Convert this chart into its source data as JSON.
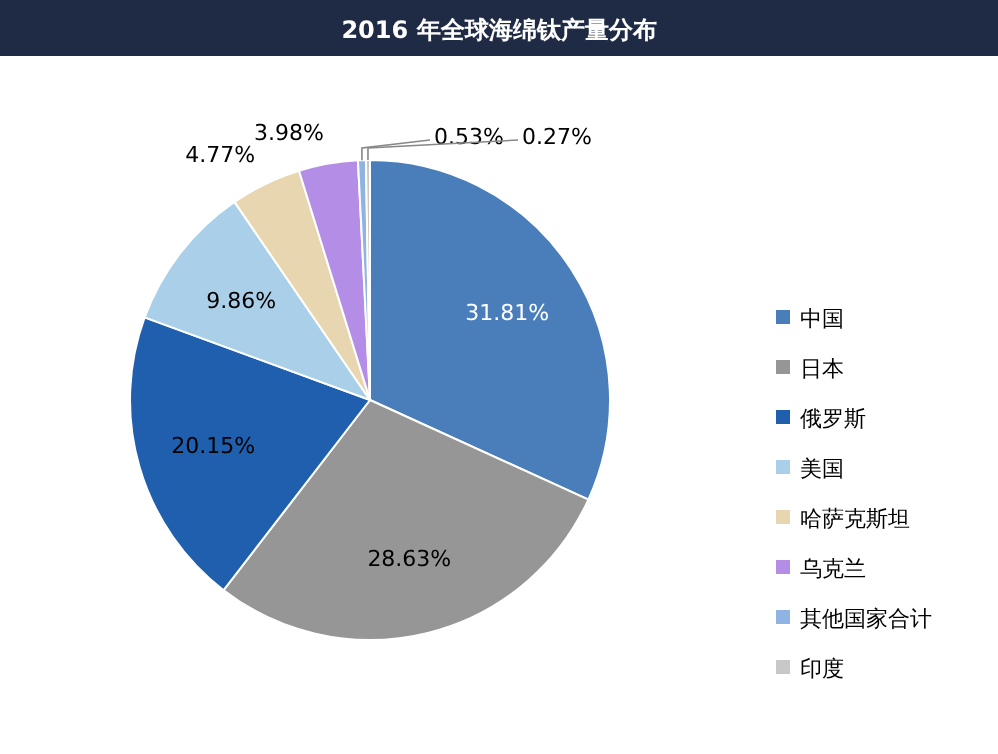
{
  "chart_data": {
    "type": "pie",
    "title": "2016 年全球海绵钛产量分布",
    "categories": [
      "中国",
      "日本",
      "俄罗斯",
      "美国",
      "哈萨克斯坦",
      "乌克兰",
      "其他国家合计",
      "印度"
    ],
    "values": [
      31.81,
      28.63,
      20.15,
      9.86,
      4.77,
      3.98,
      0.53,
      0.27
    ],
    "colors": [
      "#4a7ebb",
      "#969696",
      "#1f5fad",
      "#a9d0e8",
      "#e8d6b0",
      "#b48ee6",
      "#8fb4e3",
      "#c8c8c8"
    ],
    "value_labels": [
      "31.81%",
      "28.63%",
      "20.15%",
      "9.86%",
      "4.77%",
      "3.98%",
      "0.53%",
      "0.27%"
    ],
    "legend": "right"
  }
}
